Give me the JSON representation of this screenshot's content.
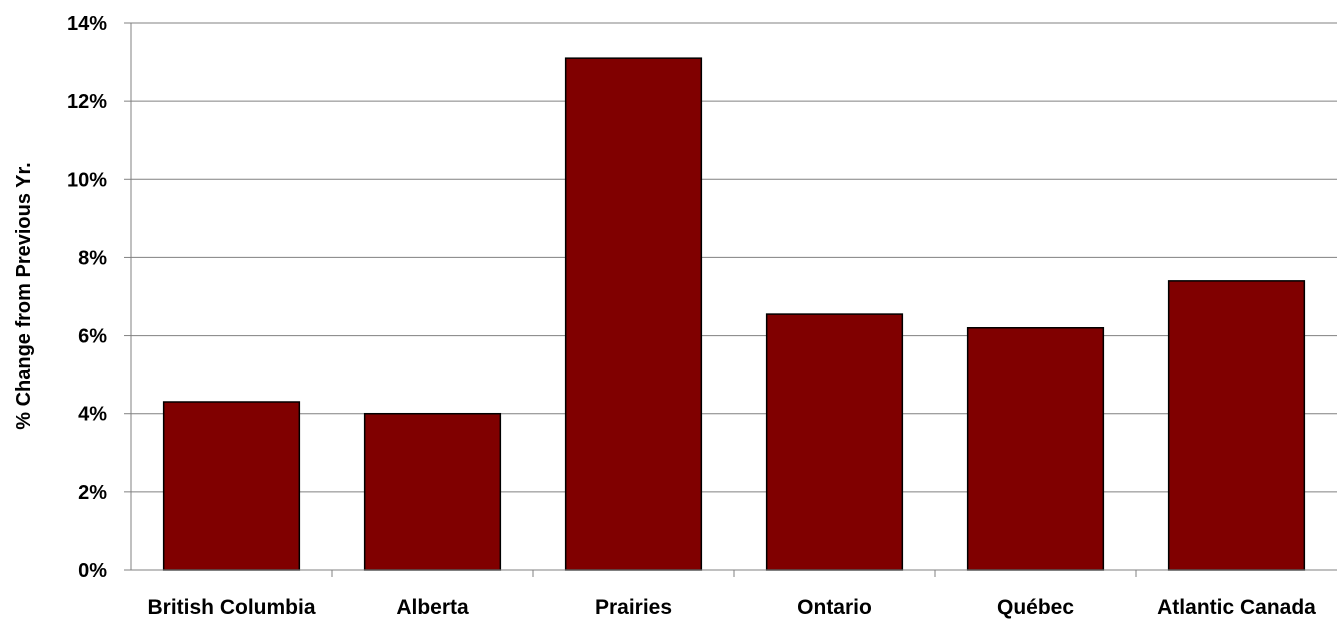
{
  "chart_data": {
    "type": "bar",
    "categories": [
      "British Columbia",
      "Alberta",
      "Prairies",
      "Ontario",
      "Québec",
      "Atlantic Canada"
    ],
    "values": [
      4.3,
      4.0,
      13.1,
      6.55,
      6.2,
      7.4
    ],
    "ylabel": "% Change from Previous Yr.",
    "xlabel": "",
    "ylim": [
      0,
      14
    ],
    "y_ticks": [
      0,
      2,
      4,
      6,
      8,
      10,
      12,
      14
    ],
    "y_tick_format": "percent",
    "grid": true,
    "legend": "none"
  },
  "colors": {
    "bar_fill": "#800000",
    "bar_stroke": "#000000",
    "grid": "#808080",
    "axis": "#808080"
  }
}
